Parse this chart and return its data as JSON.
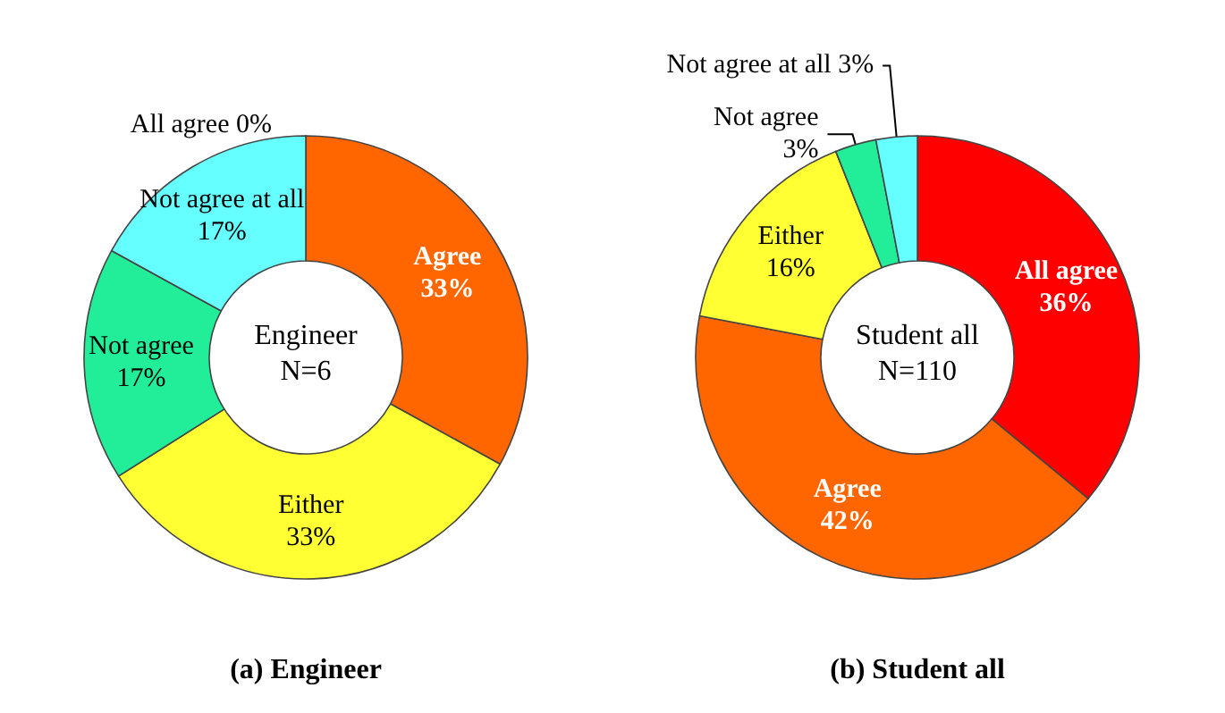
{
  "chart_data": [
    {
      "type": "donut",
      "title": "(a) Engineer",
      "annotations": [
        "Engineer",
        "N=6"
      ],
      "categories": [
        "All agree",
        "Agree",
        "Either",
        "Not agree",
        "Not agree at all"
      ],
      "values": [
        0,
        33,
        33,
        17,
        17
      ],
      "colors": [
        "#ff0000",
        "#ff6600",
        "#ffff33",
        "#22ee99",
        "#66ffff"
      ],
      "value_labels": [
        "0%",
        "33%",
        "33%",
        "17%",
        "17%"
      ]
    },
    {
      "type": "donut",
      "title": "(b) Student all",
      "annotations": [
        "Student all",
        "N=110"
      ],
      "categories": [
        "All agree",
        "Agree",
        "Either",
        "Not agree",
        "Not agree at all"
      ],
      "values": [
        36,
        42,
        16,
        3,
        3
      ],
      "colors": [
        "#ff0000",
        "#ff6600",
        "#ffff33",
        "#22ee99",
        "#66ffff"
      ],
      "value_labels": [
        "36%",
        "42%",
        "16%",
        "3%",
        "3%"
      ]
    }
  ]
}
